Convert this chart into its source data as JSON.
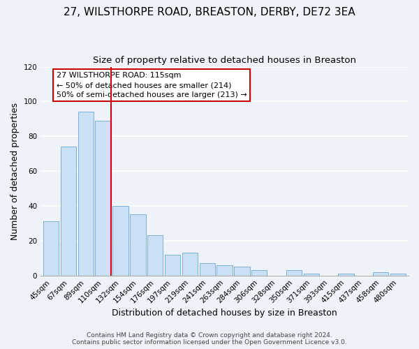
{
  "title": "27, WILSTHORPE ROAD, BREASTON, DERBY, DE72 3EA",
  "subtitle": "Size of property relative to detached houses in Breaston",
  "xlabel": "Distribution of detached houses by size in Breaston",
  "ylabel": "Number of detached properties",
  "bar_labels": [
    "45sqm",
    "67sqm",
    "89sqm",
    "110sqm",
    "132sqm",
    "154sqm",
    "176sqm",
    "197sqm",
    "219sqm",
    "241sqm",
    "263sqm",
    "284sqm",
    "306sqm",
    "328sqm",
    "350sqm",
    "371sqm",
    "393sqm",
    "415sqm",
    "437sqm",
    "458sqm",
    "480sqm"
  ],
  "bar_values": [
    31,
    74,
    94,
    89,
    40,
    35,
    23,
    12,
    13,
    7,
    6,
    5,
    3,
    0,
    3,
    1,
    0,
    1,
    0,
    2,
    1
  ],
  "bar_color": "#cce0f5",
  "bar_edgecolor": "#7ab0d4",
  "vline_x_index": 3,
  "vline_color": "#cc0000",
  "annotation_line1": "27 WILSTHORPE ROAD: 115sqm",
  "annotation_line2": "← 50% of detached houses are smaller (214)",
  "annotation_line3": "50% of semi-detached houses are larger (213) →",
  "annotation_box_edgecolor": "#cc0000",
  "annotation_box_facecolor": "#ffffff",
  "ylim": [
    0,
    120
  ],
  "yticks": [
    0,
    20,
    40,
    60,
    80,
    100,
    120
  ],
  "footer_line1": "Contains HM Land Registry data © Crown copyright and database right 2024.",
  "footer_line2": "Contains public sector information licensed under the Open Government Licence v3.0.",
  "background_color": "#eef2f9",
  "plot_background_color": "#eef2f9",
  "grid_color": "#ffffff",
  "title_fontsize": 11,
  "subtitle_fontsize": 9.5,
  "axis_label_fontsize": 9,
  "tick_fontsize": 7.5,
  "annotation_fontsize": 8,
  "footer_fontsize": 6.5
}
